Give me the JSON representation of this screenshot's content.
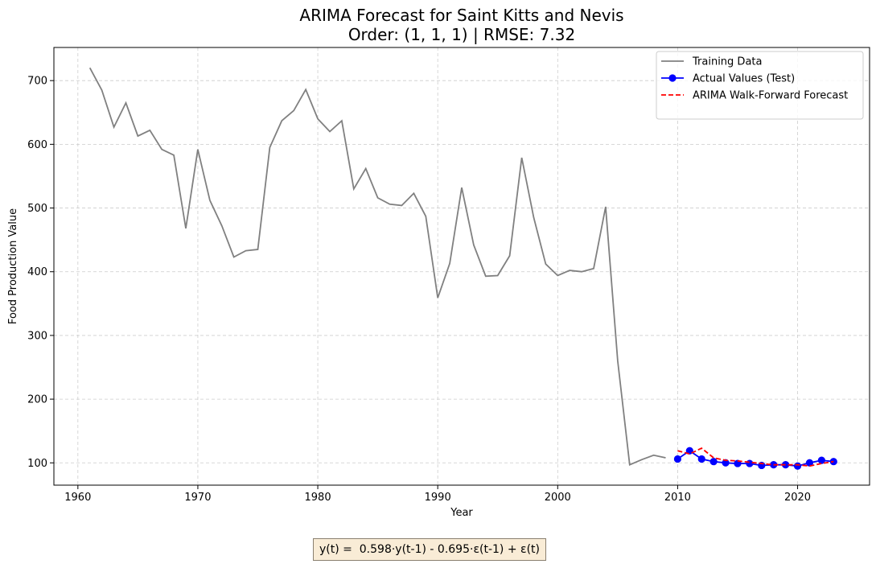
{
  "chart_data": {
    "type": "line",
    "title": "ARIMA Forecast for Saint Kitts and Nevis",
    "subtitle": "Order: (1, 1, 1) | RMSE: 7.32",
    "xlabel": "Year",
    "ylabel": "Food Production Value",
    "xlim": [
      1958,
      2026
    ],
    "ylim": [
      65,
      752
    ],
    "xticks": [
      1960,
      1970,
      1980,
      1990,
      2000,
      2010,
      2020
    ],
    "yticks": [
      100,
      200,
      300,
      400,
      500,
      600,
      700
    ],
    "grid": true,
    "legend": "top-right",
    "series": [
      {
        "name": "Training Data",
        "color": "#808080",
        "style": "solid",
        "x": [
          1961,
          1962,
          1963,
          1964,
          1965,
          1966,
          1967,
          1968,
          1969,
          1970,
          1971,
          1972,
          1973,
          1974,
          1975,
          1976,
          1977,
          1978,
          1979,
          1980,
          1981,
          1982,
          1983,
          1984,
          1985,
          1986,
          1987,
          1988,
          1989,
          1990,
          1991,
          1992,
          1993,
          1994,
          1995,
          1996,
          1997,
          1998,
          1999,
          2000,
          2001,
          2002,
          2003,
          2004,
          2005,
          2006,
          2007,
          2008,
          2009
        ],
        "y": [
          720,
          685,
          627,
          665,
          613,
          622,
          592,
          583,
          468,
          592,
          512,
          472,
          423,
          433,
          435,
          595,
          637,
          653,
          686,
          640,
          620,
          637,
          530,
          562,
          516,
          506,
          504,
          523,
          487,
          359,
          413,
          532,
          442,
          393,
          394,
          425,
          579,
          485,
          412,
          394,
          402,
          400,
          405,
          502,
          260,
          97,
          105,
          112,
          108
        ]
      },
      {
        "name": "Actual Values (Test)",
        "color": "#0000ff",
        "style": "solid-markers",
        "x": [
          2010,
          2011,
          2012,
          2013,
          2014,
          2015,
          2016,
          2017,
          2018,
          2019,
          2020,
          2021,
          2022,
          2023
        ],
        "y": [
          106,
          119,
          106,
          102,
          100,
          99,
          99,
          96,
          97,
          97,
          95,
          100,
          104,
          102
        ]
      },
      {
        "name": "ARIMA Walk-Forward Forecast",
        "color": "#ff0000",
        "style": "dashed",
        "x": [
          2010,
          2011,
          2012,
          2013,
          2014,
          2015,
          2016,
          2017,
          2018,
          2019,
          2020,
          2021,
          2022,
          2023
        ],
        "y": [
          119,
          114,
          123,
          108,
          104,
          103,
          101,
          99,
          97,
          97,
          97,
          95,
          99,
          102
        ]
      }
    ],
    "annotation": "y(t) =  0.598·y(t-1) - 0.695·ε(t-1) + ε(t)"
  }
}
